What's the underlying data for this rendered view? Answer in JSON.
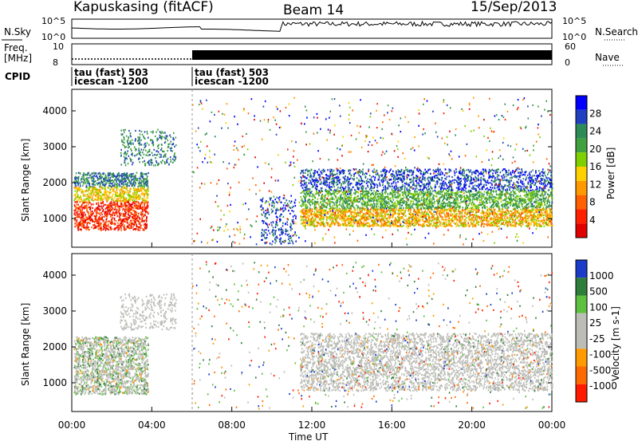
{
  "header": {
    "station": "Kapuskasing (fitACF)",
    "beam": "Beam 14",
    "date": "15/Sep/2013"
  },
  "colors": {
    "power_scale": [
      "#0000ff",
      "#2040c0",
      "#2e8b57",
      "#40a040",
      "#7fd000",
      "#ffd000",
      "#ff9900",
      "#ff6000",
      "#ff2000",
      "#e00000"
    ],
    "velocity_scale": [
      "#1a3cc8",
      "#2e7d3a",
      "#5fbf3f",
      "#bdbdb8",
      "#bdbdb8",
      "#ff9a00",
      "#ff6a00",
      "#ff1a00"
    ]
  },
  "chart_data": [
    {
      "type": "line",
      "panel": "noise",
      "left_label": "N.Sky",
      "left_ticks": [
        "10^5",
        "10^0"
      ],
      "right_label": "N.Search",
      "right_ticks": [
        "10^5",
        "10^0"
      ]
    },
    {
      "type": "line",
      "panel": "frequency",
      "left_label": "Freq.",
      "left_unit": "[MHz]",
      "left_ticks": [
        "10",
        "8"
      ],
      "right_label": "Nave",
      "right_ticks": [
        "60",
        "0"
      ]
    },
    {
      "type": "table",
      "panel": "cpid",
      "label": "CPID",
      "segments": [
        {
          "start": "00:00",
          "line1": "tau (fast) 503",
          "line2": "icescan -1200"
        },
        {
          "start": "06:00",
          "line1": "tau (fast) 503",
          "line2": "icescan -1200"
        }
      ]
    },
    {
      "type": "heatmap",
      "panel": "power",
      "ylabel": "Slant Range [km]",
      "yticks": [
        1000,
        2000,
        3000,
        4000
      ],
      "ylim": [
        200,
        4600
      ],
      "xticks": [
        "00:00",
        "04:00",
        "08:00",
        "12:00",
        "16:00",
        "20:00",
        "00:00"
      ],
      "xlim": [
        0,
        24
      ],
      "colorbar_label": "Power [dB]",
      "colorbar_ticks": [
        "28",
        "24",
        "20",
        "16",
        "12",
        "8",
        "4"
      ]
    },
    {
      "type": "heatmap",
      "panel": "velocity",
      "ylabel": "Slant Range [km]",
      "yticks": [
        1000,
        2000,
        3000,
        4000
      ],
      "ylim": [
        200,
        4600
      ],
      "xticks": [
        "00:00",
        "04:00",
        "08:00",
        "12:00",
        "16:00",
        "20:00",
        "00:00"
      ],
      "xlim": [
        0,
        24
      ],
      "xlabel": "Time UT",
      "colorbar_label": "Velocity [m s-1]",
      "colorbar_ticks": [
        "1000",
        "500",
        "100",
        "25",
        "-25",
        "-100",
        "-500",
        "-1000"
      ]
    }
  ]
}
